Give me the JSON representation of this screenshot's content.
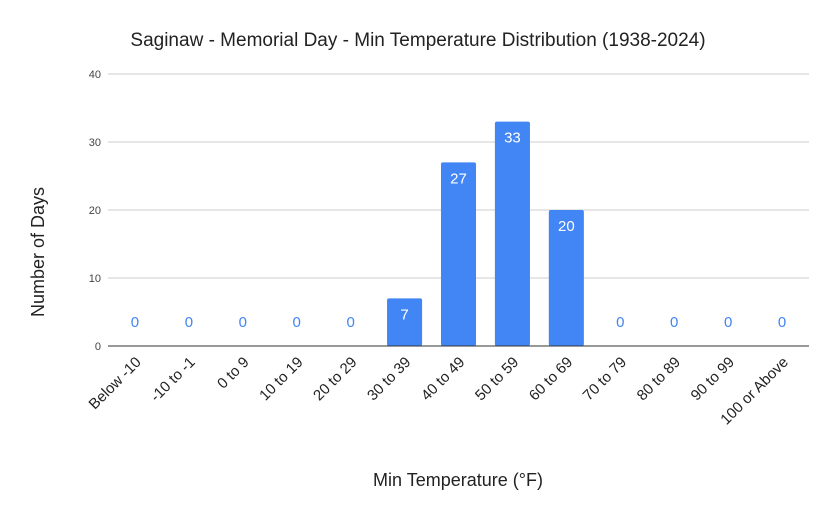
{
  "chart_data": {
    "type": "bar",
    "title": "Saginaw - Memorial Day - Min Temperature Distribution (1938-2024)",
    "xlabel": "Min Temperature (°F)",
    "ylabel": "Number of Days",
    "categories": [
      "Below -10",
      "-10 to -1",
      "0 to 9",
      "10 to 19",
      "20 to 29",
      "30 to 39",
      "40 to 49",
      "50 to 59",
      "60 to 69",
      "70 to 79",
      "80 to 89",
      "90 to 99",
      "100 or Above"
    ],
    "values": [
      0,
      0,
      0,
      0,
      0,
      7,
      27,
      33,
      20,
      0,
      0,
      0,
      0
    ],
    "ylim": [
      0,
      40
    ],
    "yticks": [
      0,
      10,
      20,
      30,
      40
    ],
    "grid": true,
    "legend": "none",
    "bar_color": "#4285f4",
    "label_inside_color": "#ffffff",
    "label_outside_color": "#4285f4",
    "gridline_color": "#cccccc",
    "axis_color": "#333333"
  }
}
